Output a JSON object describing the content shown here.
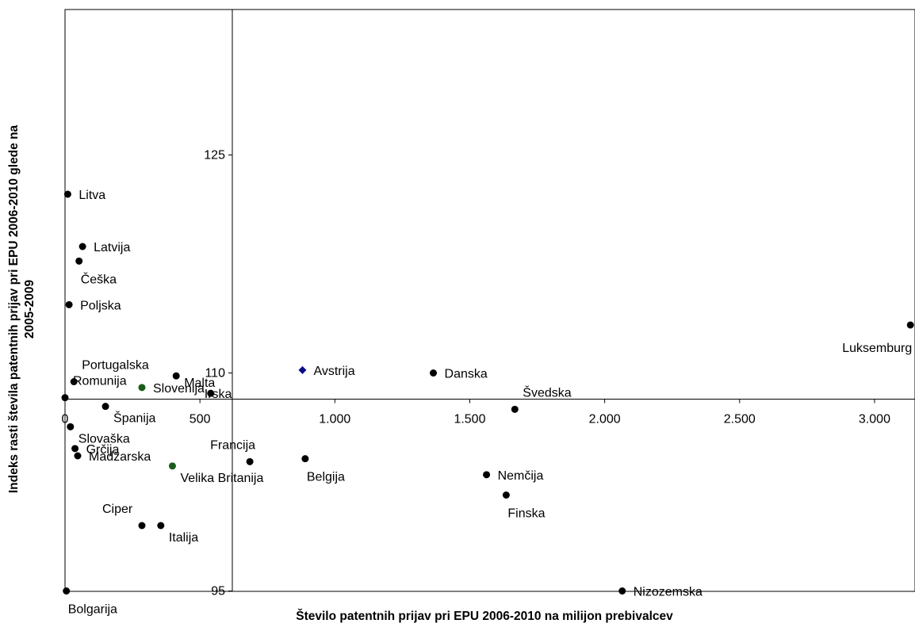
{
  "chart_data": {
    "type": "scatter",
    "title": "",
    "xlabel": "Število patentnih prijav pri EPU 2006-2010 na milijon prebivalcev",
    "ylabel": [
      "Indeks rasti števila patentnih prijav pri EPU 2006-2010 glede na",
      "2005-2009"
    ],
    "xlim": [
      0,
      3150
    ],
    "ylim": [
      95,
      135
    ],
    "x_crosses_y_at": 108.2,
    "y_crosses_x_at": 620,
    "x_ticks": [
      {
        "value": 0,
        "label": "0"
      },
      {
        "value": 500,
        "label": "500"
      },
      {
        "value": 1000,
        "label": "1.000"
      },
      {
        "value": 1500,
        "label": "1.500"
      },
      {
        "value": 2000,
        "label": "2.000"
      },
      {
        "value": 2500,
        "label": "2.500"
      },
      {
        "value": 3000,
        "label": "3.000"
      }
    ],
    "y_ticks": [
      {
        "value": 95,
        "label": "95"
      },
      {
        "value": 110,
        "label": "110"
      },
      {
        "value": 125,
        "label": "125"
      }
    ],
    "grid": false,
    "legend": "none",
    "colors": {
      "default": "#000000",
      "slovenia_label": "#ff0000",
      "slovenia_marker": "#1a5c1a",
      "austria_marker": "#0b0b8a"
    },
    "points": [
      {
        "label": "Litva",
        "x": 10,
        "y": 122.3,
        "pos": "right"
      },
      {
        "label": "Latvija",
        "x": 65,
        "y": 118.7,
        "pos": "right"
      },
      {
        "label": "Češka",
        "x": 52,
        "y": 117.7,
        "pos": "below"
      },
      {
        "label": "Poljska",
        "x": 15,
        "y": 114.7,
        "pos": "right"
      },
      {
        "label": "Luksemburg",
        "x": 3133,
        "y": 113.3,
        "pos": "below-left"
      },
      {
        "label": "Portugalska",
        "x": 33,
        "y": 109.4,
        "pos": "above-right"
      },
      {
        "label": "Malta",
        "x": 412,
        "y": 109.8,
        "pos": "below-right-small"
      },
      {
        "label": "Romunija",
        "x": 0,
        "y": 108.3,
        "pos": "above-right"
      },
      {
        "label": "Slovenija",
        "x": 285,
        "y": 109.0,
        "pos": "right",
        "color": "#ff0000",
        "marker": "#1a5c1a"
      },
      {
        "label": "Irska",
        "x": 540,
        "y": 108.6,
        "pos": "left-overlap"
      },
      {
        "label": "Avstrija",
        "x": 880,
        "y": 110.2,
        "pos": "right",
        "shape": "diamond",
        "marker": "#0b0b8a"
      },
      {
        "label": "Danska",
        "x": 1365,
        "y": 110.0,
        "pos": "right"
      },
      {
        "label": "Švedska",
        "x": 1667,
        "y": 107.5,
        "pos": "above-right"
      },
      {
        "label": "Španija",
        "x": 150,
        "y": 107.7,
        "pos": "below-right"
      },
      {
        "label": "Slovaška",
        "x": 20,
        "y": 106.3,
        "pos": "below-right"
      },
      {
        "label": "Grčija",
        "x": 37,
        "y": 104.8,
        "pos": "right"
      },
      {
        "label": "Madžarska",
        "x": 47,
        "y": 104.3,
        "pos": "right"
      },
      {
        "label": "Velika Britanija",
        "x": 398,
        "y": 103.6,
        "pos": "below-right",
        "marker": "#1a5c1a"
      },
      {
        "label": "Francija",
        "x": 685,
        "y": 103.9,
        "pos": "above-left"
      },
      {
        "label": "Belgija",
        "x": 890,
        "y": 104.1,
        "pos": "below"
      },
      {
        "label": "Nemčija",
        "x": 1562,
        "y": 103.0,
        "pos": "right"
      },
      {
        "label": "Finska",
        "x": 1635,
        "y": 101.6,
        "pos": "below"
      },
      {
        "label": "Ciper",
        "x": 285,
        "y": 99.5,
        "pos": "above-left"
      },
      {
        "label": "Italija",
        "x": 355,
        "y": 99.5,
        "pos": "below-right"
      },
      {
        "label": "Nizozemska",
        "x": 2065,
        "y": 95.0,
        "pos": "right"
      },
      {
        "label": "Bolgarija",
        "x": 5,
        "y": 95.0,
        "pos": "below"
      }
    ]
  }
}
